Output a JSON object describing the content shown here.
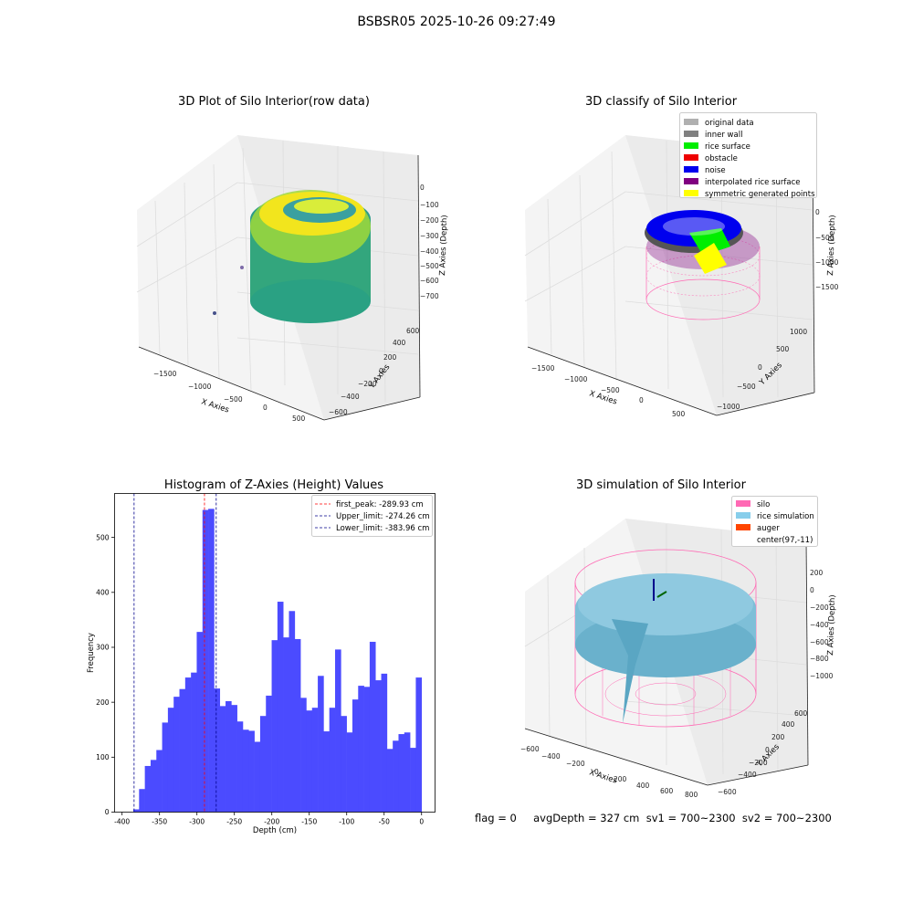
{
  "suptitle": "BSBSR05 2025-10-26 09:27:49",
  "panels": {
    "raw": {
      "title": "3D Plot of Silo Interior(row data)",
      "xlabel": "X Axies",
      "ylabel": "Y Axies",
      "zlabel": "Z Axies (Depth)",
      "xticks": [
        "−1500",
        "−1000",
        "−500",
        "0",
        "500"
      ],
      "yticks": [
        "−600",
        "−400",
        "−200",
        "0",
        "200",
        "400",
        "600"
      ],
      "zticks": [
        "0",
        "−100",
        "−200",
        "−300",
        "−400",
        "−500",
        "−600",
        "−700"
      ]
    },
    "classify": {
      "title": "3D classify of Silo Interior",
      "xlabel": "X Axies",
      "ylabel": "Y Axies",
      "zlabel": "Z Axies (Depth)",
      "xticks": [
        "−1500",
        "−1000",
        "−500",
        "0",
        "500"
      ],
      "yticks": [
        "−1000",
        "−500",
        "0",
        "500",
        "1000"
      ],
      "zticks": [
        "0",
        "−500",
        "−1000",
        "−1500"
      ],
      "legend": [
        {
          "label": "original data",
          "color": "#b0b0b0"
        },
        {
          "label": "inner wall",
          "color": "#808080"
        },
        {
          "label": "rice surface",
          "color": "#00ee00"
        },
        {
          "label": "obstacle",
          "color": "#ee0000"
        },
        {
          "label": "noise",
          "color": "#0000ee"
        },
        {
          "label": "interpolated rice surface",
          "color": "#800080"
        },
        {
          "label": "symmetric generated points",
          "color": "#ffff00"
        }
      ]
    },
    "simulation": {
      "title": "3D simulation of Silo Interior",
      "xlabel": "X Axies",
      "ylabel": "Y Axies",
      "zlabel": "Z Axies (Depth)",
      "xticks": [
        "−600",
        "−400",
        "−200",
        "0",
        "200",
        "400",
        "600",
        "800"
      ],
      "yticks": [
        "−600",
        "−400",
        "−200",
        "0",
        "200",
        "400",
        "600"
      ],
      "zticks": [
        "200",
        "0",
        "−200",
        "−400",
        "−600",
        "−800",
        "−1000"
      ],
      "legend": [
        {
          "label": "silo",
          "color": "#ff69b4"
        },
        {
          "label": "rice simulation",
          "color": "#87ceeb"
        },
        {
          "label": "auger",
          "color": "#ff4500"
        },
        {
          "label": "center(97,-11)",
          "color": null
        }
      ]
    }
  },
  "stats_text": "flag = 0     avgDepth = 327 cm  sv1 = 700~2300  sv2 = 700~2300",
  "colors": {
    "histogram_bar": "#4b4bff",
    "first_peak": "#ff0000",
    "limits": "#00008b"
  },
  "chart_data": {
    "type": "bar",
    "title": "Histogram of Z-Axies (Height) Values",
    "xlabel": "Depth (cm)",
    "ylabel": "Frequency",
    "xlim": [
      -410,
      18
    ],
    "ylim": [
      0,
      580
    ],
    "xticks": [
      -400,
      -350,
      -300,
      -250,
      -200,
      -150,
      -100,
      -50,
      0
    ],
    "yticks": [
      0,
      100,
      200,
      300,
      400,
      500
    ],
    "bin_start": -385,
    "bin_width": 7.7,
    "values": [
      5,
      42,
      84,
      95,
      113,
      163,
      190,
      210,
      224,
      245,
      254,
      328,
      550,
      552,
      225,
      193,
      202,
      195,
      165,
      150,
      148,
      128,
      175,
      212,
      313,
      383,
      318,
      366,
      315,
      208,
      185,
      190,
      248,
      147,
      190,
      296,
      175,
      145,
      205,
      230,
      228,
      310,
      240,
      252,
      115,
      130,
      142,
      145,
      117,
      245
    ],
    "lines": [
      {
        "label": "first_peak: -289.93 cm",
        "x": -289.93,
        "color": "#ff0000"
      },
      {
        "label": "Upper_limit: -274.26 cm",
        "x": -274.26,
        "color": "#00008b"
      },
      {
        "label": "Lower_limit: -383.96 cm",
        "x": -383.96,
        "color": "#00008b"
      }
    ],
    "grid": false,
    "legend_position": "top-right"
  }
}
